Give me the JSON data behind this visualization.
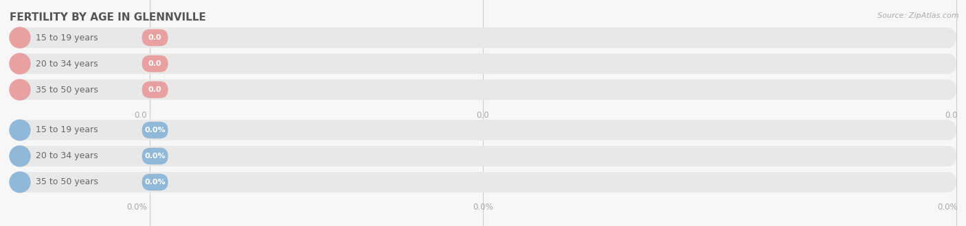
{
  "title": "FERTILITY BY AGE IN GLENNVILLE",
  "source_text": "Source: ZipAtlas.com",
  "top_group": {
    "labels": [
      "15 to 19 years",
      "20 to 34 years",
      "35 to 50 years"
    ],
    "values": [
      0.0,
      0.0,
      0.0
    ],
    "circle_color": "#e8a0a0",
    "value_color": "#e8a0a0",
    "value_format": "0.0",
    "axis_label": "0.0"
  },
  "bottom_group": {
    "labels": [
      "15 to 19 years",
      "20 to 34 years",
      "35 to 50 years"
    ],
    "values": [
      0.0,
      0.0,
      0.0
    ],
    "circle_color": "#90b8d8",
    "value_color": "#90b8d8",
    "value_format": "0.0%",
    "axis_label": "0.0%"
  },
  "bg_color": "#f7f7f7",
  "bar_bg_color": "#e8e8e8",
  "fig_width": 14.06,
  "fig_height": 3.3,
  "dpi": 100,
  "gridline_color": "#cccccc",
  "axis_tick_color": "#aaaaaa",
  "title_color": "#555555",
  "label_color": "#666666"
}
